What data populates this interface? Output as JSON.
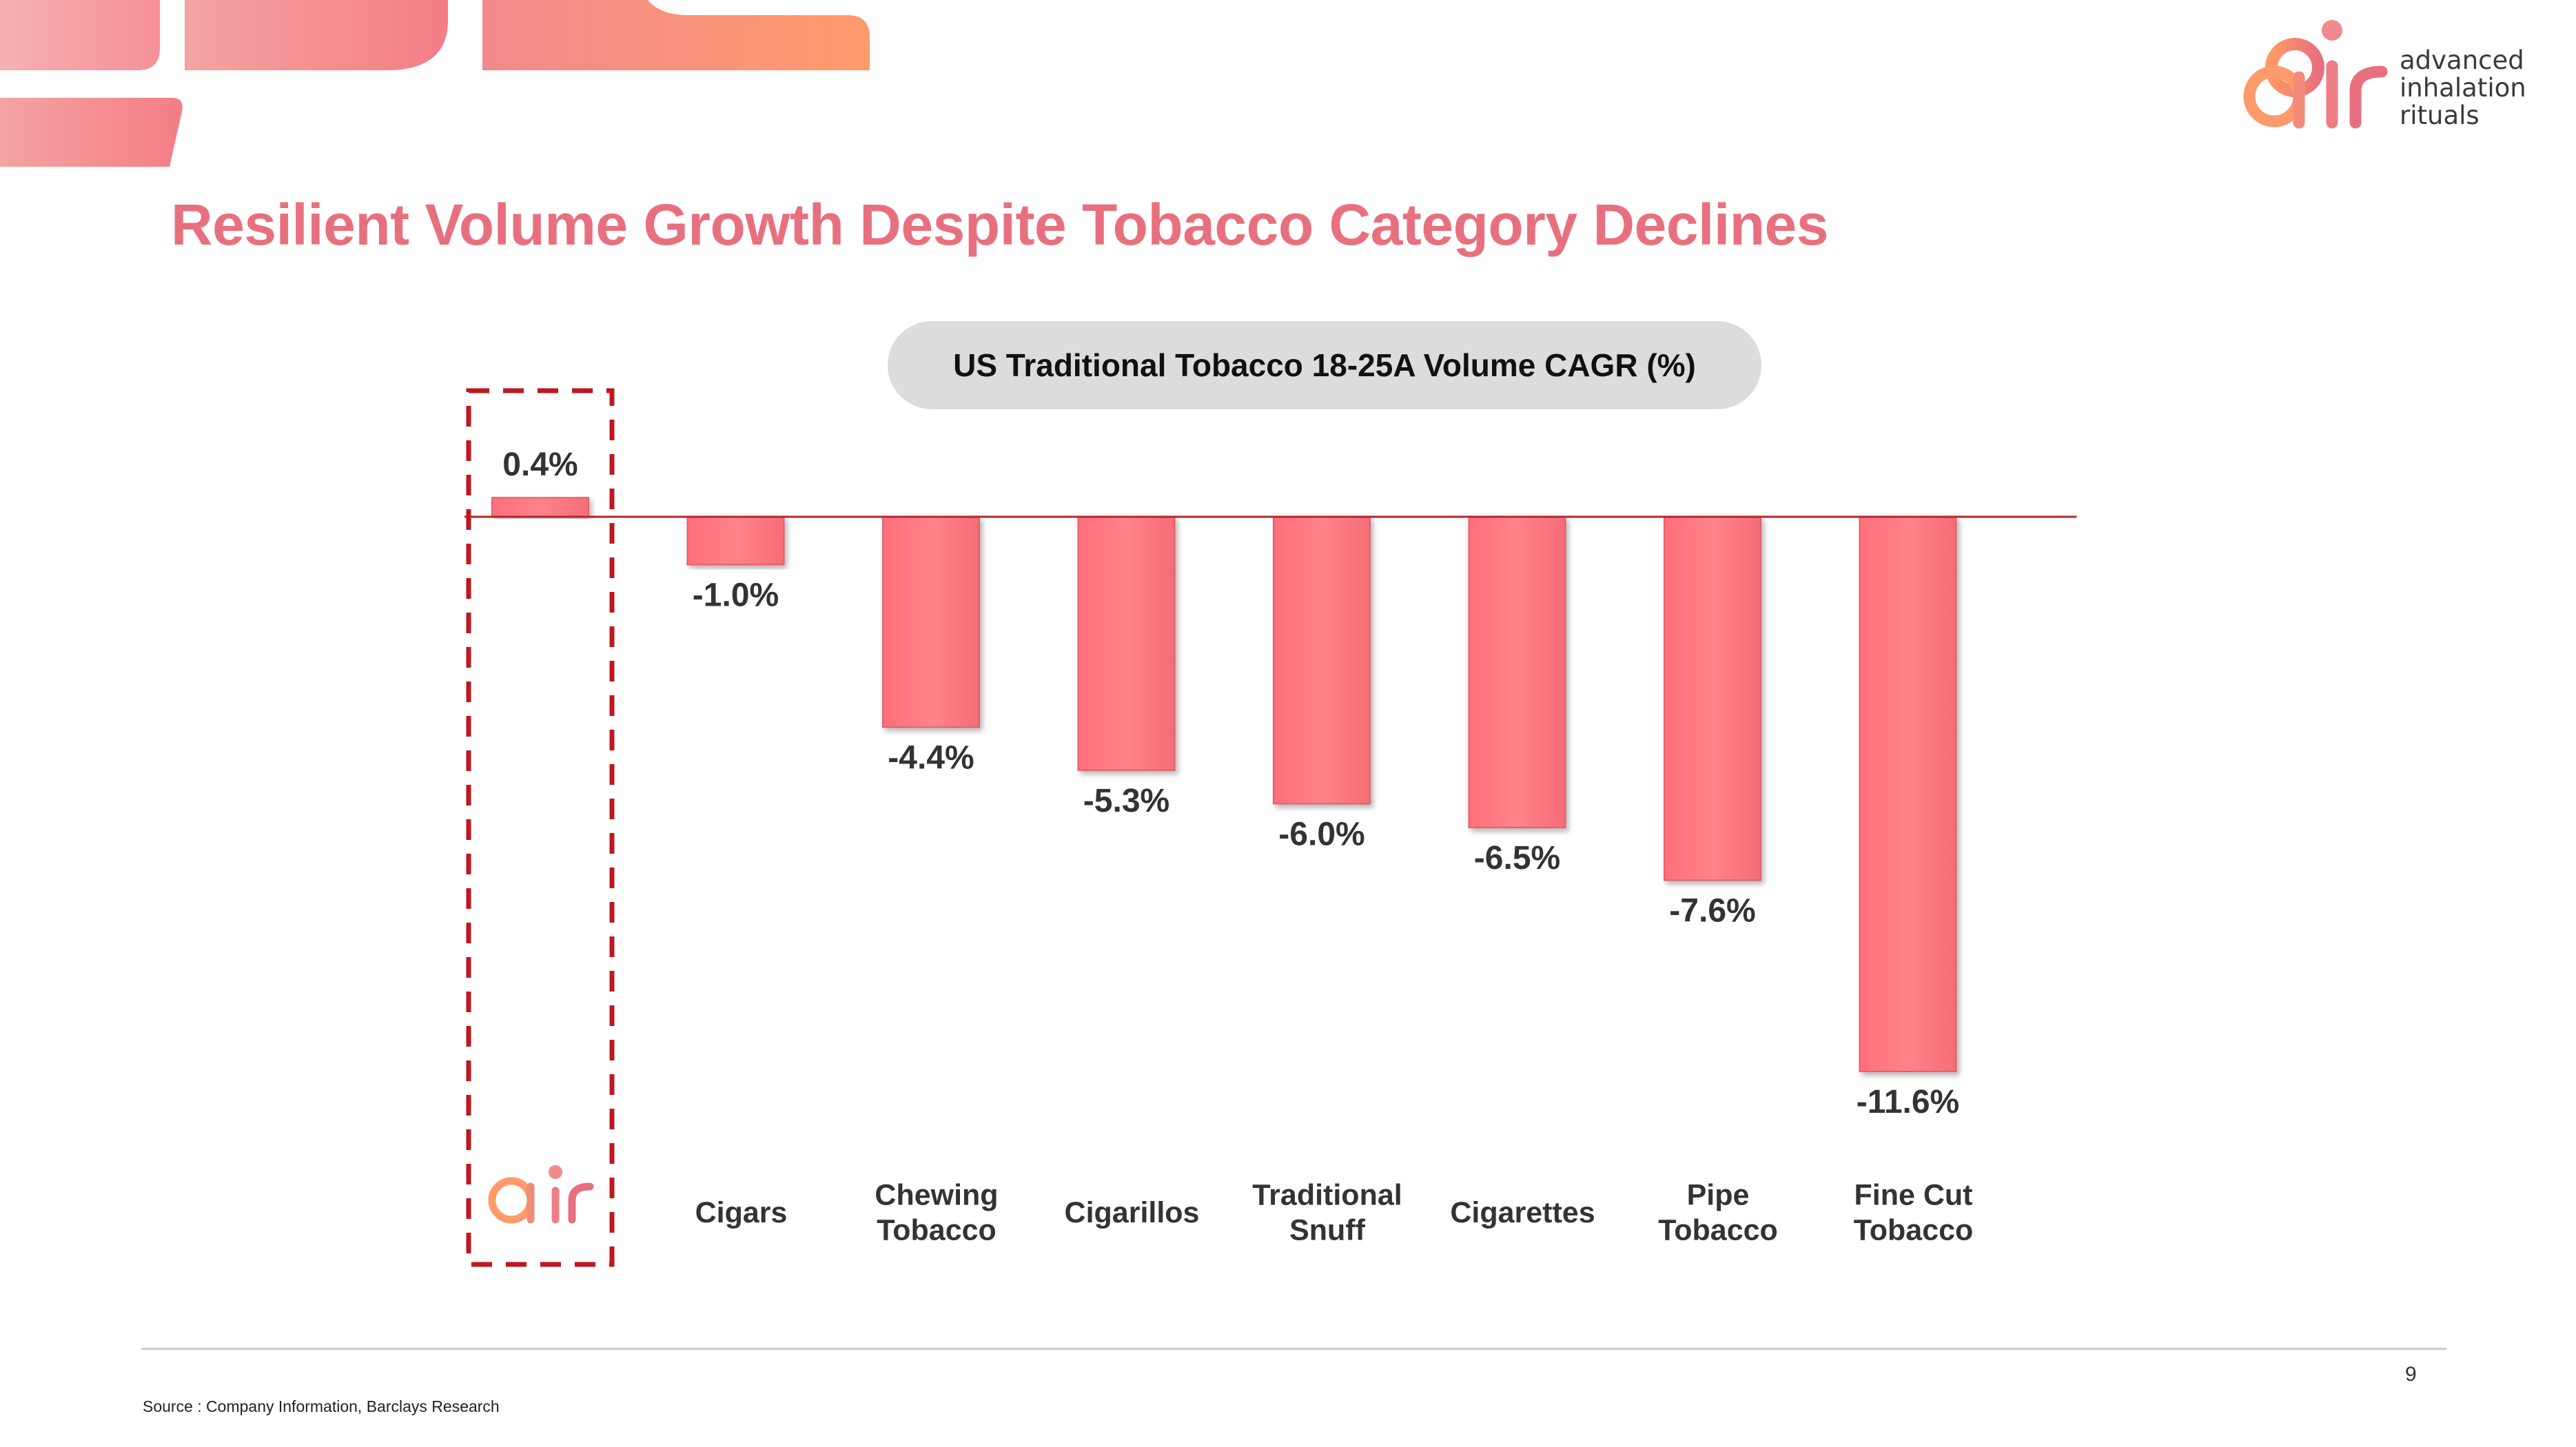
{
  "brand": {
    "logo_word": "air",
    "tagline": [
      "advanced",
      "inhalation",
      "rituals"
    ],
    "accent": "#e8707e",
    "bar_color": "#ff7880",
    "orange": "#f7a05e"
  },
  "slide": {
    "title": "Resilient Volume Growth Despite Tobacco Category Declines",
    "page_number": "9",
    "source": "Source : Company Information, Barclays Research"
  },
  "chart_data": {
    "type": "bar",
    "title": "US Traditional Tobacco 18-25A Volume CAGR (%)",
    "categories": [
      "air",
      "Cigars",
      "Chewing Tobacco",
      "Cigarillos",
      "Traditional Snuff",
      "Cigarettes",
      "Pipe Tobacco",
      "Fine Cut Tobacco"
    ],
    "category_lines": [
      [
        "air"
      ],
      [
        "Cigars"
      ],
      [
        "Chewing",
        "Tobacco"
      ],
      [
        "Cigarillos"
      ],
      [
        "Traditional",
        "Snuff"
      ],
      [
        "Cigarettes"
      ],
      [
        "Pipe",
        "Tobacco"
      ],
      [
        "Fine Cut",
        "Tobacco"
      ]
    ],
    "values": [
      0.4,
      -1.0,
      -4.4,
      -5.3,
      -6.0,
      -6.5,
      -7.6,
      -11.6
    ],
    "value_labels": [
      "0.4%",
      "-1.0%",
      "-4.4%",
      "-5.3%",
      "-6.0%",
      "-6.5%",
      "-7.6%",
      "-11.6%"
    ],
    "highlight_category": "air",
    "grid": false,
    "legend": "none"
  }
}
